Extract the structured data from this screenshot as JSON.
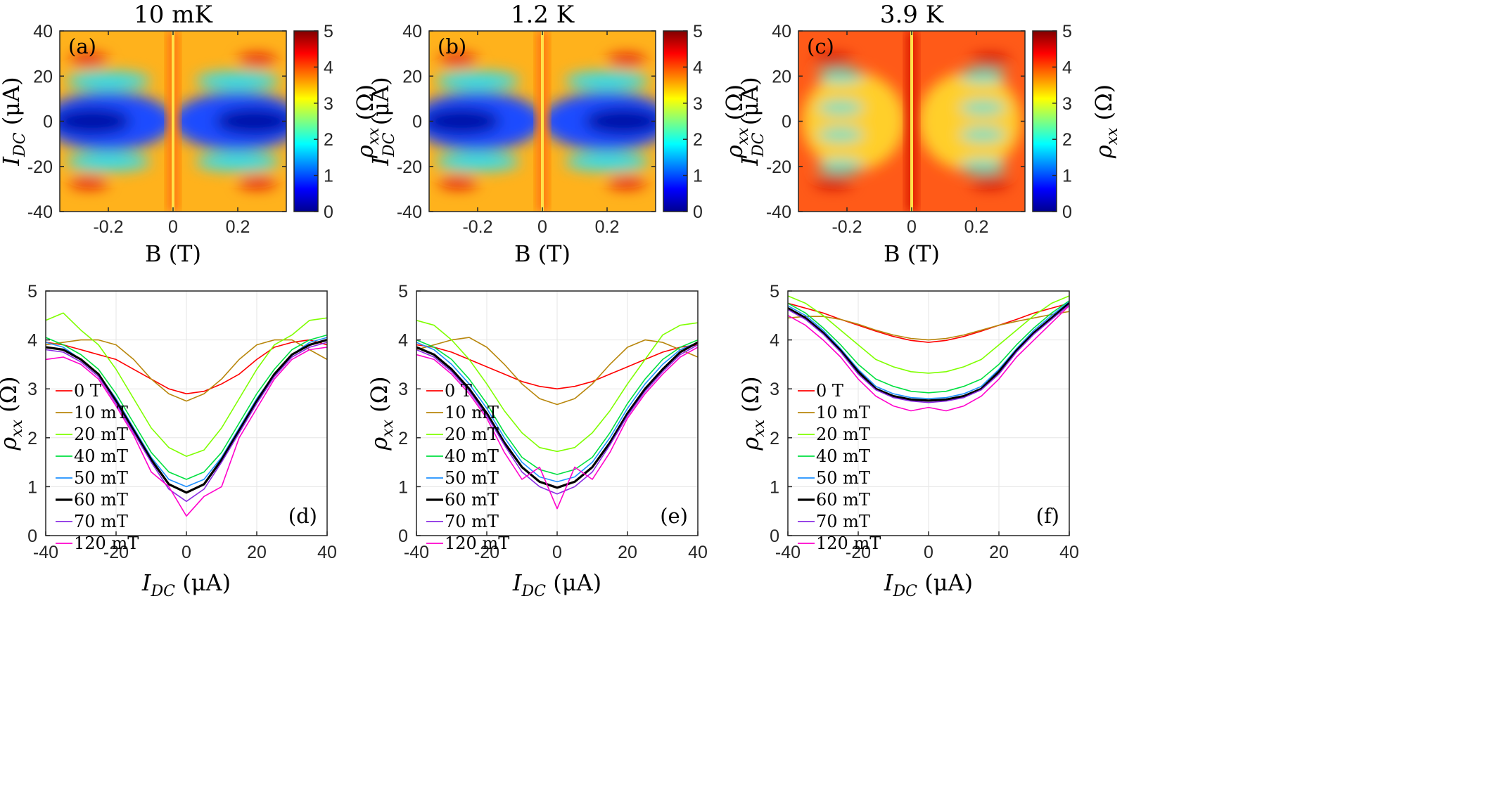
{
  "chart_data": [
    {
      "type": "heatmap",
      "panel": "(a)",
      "title": "10 mK",
      "xlabel": "B (T)",
      "ylabel": "I_DC (μA)",
      "colorbar_label": "ρ_xx (Ω)",
      "xlim": [
        -0.35,
        0.35
      ],
      "ylim": [
        -40,
        40
      ],
      "clim": [
        0,
        5
      ],
      "xticks": [
        "-0.2",
        "0",
        "0.2"
      ],
      "yticks": [
        "-40",
        "-20",
        "0",
        "20",
        "40"
      ],
      "cbar_ticks": [
        "0",
        "1",
        "2",
        "3",
        "4",
        "5"
      ],
      "temperature_K": 0.01
    },
    {
      "type": "heatmap",
      "panel": "(b)",
      "title": "1.2 K",
      "xlabel": "B (T)",
      "ylabel": "I_DC (μA)",
      "colorbar_label": "ρ_xx (Ω)",
      "xlim": [
        -0.35,
        0.35
      ],
      "ylim": [
        -40,
        40
      ],
      "clim": [
        0,
        5
      ],
      "xticks": [
        "-0.2",
        "0",
        "0.2"
      ],
      "yticks": [
        "-40",
        "-20",
        "0",
        "20",
        "40"
      ],
      "cbar_ticks": [
        "0",
        "1",
        "2",
        "3",
        "4",
        "5"
      ],
      "temperature_K": 1.2
    },
    {
      "type": "heatmap",
      "panel": "(c)",
      "title": "3.9 K",
      "xlabel": "B (T)",
      "ylabel": "I_DC (μA)",
      "colorbar_label": "ρ_xx (Ω)",
      "xlim": [
        -0.35,
        0.35
      ],
      "ylim": [
        -40,
        40
      ],
      "clim": [
        0,
        5
      ],
      "xticks": [
        "-0.2",
        "0",
        "0.2"
      ],
      "yticks": [
        "-40",
        "-20",
        "0",
        "20",
        "40"
      ],
      "cbar_ticks": [
        "0",
        "1",
        "2",
        "3",
        "4",
        "5"
      ],
      "temperature_K": 3.9
    },
    {
      "type": "line",
      "panel": "(d)",
      "xlabel": "I_DC (μA)",
      "ylabel": "ρ_xx (Ω)",
      "xlim": [
        -40,
        40
      ],
      "ylim": [
        0,
        5
      ],
      "xticks": [
        "-40",
        "-20",
        "0",
        "20",
        "40"
      ],
      "yticks": [
        "0",
        "1",
        "2",
        "3",
        "4",
        "5"
      ],
      "grid": true,
      "legend": "left",
      "x": [
        -40,
        -35,
        -30,
        -25,
        -20,
        -15,
        -10,
        -5,
        0,
        5,
        10,
        15,
        20,
        25,
        30,
        35,
        40
      ],
      "series": [
        {
          "name": "0 T",
          "color": "#ff0000",
          "values": [
            3.95,
            3.9,
            3.8,
            3.7,
            3.6,
            3.4,
            3.2,
            3.0,
            2.9,
            2.95,
            3.1,
            3.3,
            3.6,
            3.85,
            3.95,
            4.0,
            3.9
          ]
        },
        {
          "name": "10 mT",
          "color": "#b8860b",
          "values": [
            3.9,
            3.95,
            4.0,
            4.0,
            3.9,
            3.6,
            3.2,
            2.9,
            2.75,
            2.9,
            3.2,
            3.6,
            3.9,
            4.0,
            4.0,
            3.8,
            3.6
          ]
        },
        {
          "name": "20 mT",
          "color": "#7fff00",
          "values": [
            4.4,
            4.55,
            4.2,
            3.9,
            3.4,
            2.8,
            2.2,
            1.8,
            1.62,
            1.75,
            2.2,
            2.8,
            3.4,
            3.9,
            4.1,
            4.4,
            4.45
          ]
        },
        {
          "name": "40 mT",
          "color": "#00e040",
          "values": [
            4.05,
            3.9,
            3.7,
            3.4,
            2.9,
            2.3,
            1.7,
            1.3,
            1.15,
            1.3,
            1.7,
            2.3,
            2.9,
            3.4,
            3.8,
            4.0,
            4.1
          ]
        },
        {
          "name": "50 mT",
          "color": "#1e90ff",
          "values": [
            3.95,
            3.85,
            3.6,
            3.3,
            2.8,
            2.2,
            1.6,
            1.15,
            1.0,
            1.15,
            1.6,
            2.2,
            2.8,
            3.3,
            3.7,
            3.95,
            4.05
          ]
        },
        {
          "name": "60 mT",
          "color": "#000000",
          "values": [
            3.85,
            3.8,
            3.6,
            3.3,
            2.75,
            2.15,
            1.55,
            1.05,
            0.88,
            1.05,
            1.55,
            2.15,
            2.75,
            3.3,
            3.7,
            3.9,
            4.0
          ]
        },
        {
          "name": "70 mT",
          "color": "#8a2be2",
          "values": [
            3.8,
            3.75,
            3.55,
            3.25,
            2.7,
            2.1,
            1.5,
            0.95,
            0.7,
            0.95,
            1.5,
            2.1,
            2.7,
            3.25,
            3.65,
            3.85,
            3.95
          ]
        },
        {
          "name": "120 mT",
          "color": "#ff00cc",
          "values": [
            3.6,
            3.65,
            3.5,
            3.2,
            2.65,
            2.05,
            1.3,
            1.0,
            0.4,
            0.8,
            1.0,
            2.0,
            2.6,
            3.2,
            3.6,
            3.8,
            3.85
          ]
        }
      ]
    },
    {
      "type": "line",
      "panel": "(e)",
      "xlabel": "I_DC (μA)",
      "ylabel": "ρ_xx (Ω)",
      "xlim": [
        -40,
        40
      ],
      "ylim": [
        0,
        5
      ],
      "xticks": [
        "-40",
        "-20",
        "0",
        "20",
        "40"
      ],
      "yticks": [
        "0",
        "1",
        "2",
        "3",
        "4",
        "5"
      ],
      "grid": true,
      "legend": "left",
      "x": [
        -40,
        -35,
        -30,
        -25,
        -20,
        -15,
        -10,
        -5,
        0,
        5,
        10,
        15,
        20,
        25,
        30,
        35,
        40
      ],
      "series": [
        {
          "name": "0 T",
          "color": "#ff0000",
          "values": [
            3.9,
            3.85,
            3.75,
            3.6,
            3.45,
            3.3,
            3.15,
            3.05,
            3.0,
            3.05,
            3.15,
            3.3,
            3.45,
            3.6,
            3.75,
            3.85,
            3.9
          ]
        },
        {
          "name": "10 mT",
          "color": "#b8860b",
          "values": [
            3.8,
            3.9,
            4.0,
            4.05,
            3.85,
            3.5,
            3.1,
            2.8,
            2.68,
            2.8,
            3.1,
            3.5,
            3.85,
            4.0,
            3.95,
            3.8,
            3.65
          ]
        },
        {
          "name": "20 mT",
          "color": "#7fff00",
          "values": [
            4.4,
            4.3,
            4.0,
            3.6,
            3.1,
            2.55,
            2.1,
            1.8,
            1.72,
            1.8,
            2.1,
            2.55,
            3.1,
            3.6,
            4.1,
            4.3,
            4.35
          ]
        },
        {
          "name": "40 mT",
          "color": "#00e040",
          "values": [
            4.0,
            3.85,
            3.6,
            3.2,
            2.7,
            2.1,
            1.6,
            1.35,
            1.25,
            1.35,
            1.6,
            2.1,
            2.7,
            3.2,
            3.6,
            3.85,
            4.0
          ]
        },
        {
          "name": "50 mT",
          "color": "#1e90ff",
          "values": [
            3.95,
            3.8,
            3.5,
            3.1,
            2.6,
            2.0,
            1.5,
            1.2,
            1.1,
            1.2,
            1.5,
            2.0,
            2.6,
            3.1,
            3.5,
            3.8,
            3.95
          ]
        },
        {
          "name": "60 mT",
          "color": "#000000",
          "values": [
            3.85,
            3.7,
            3.4,
            3.0,
            2.5,
            1.9,
            1.4,
            1.1,
            0.98,
            1.1,
            1.4,
            1.9,
            2.5,
            3.0,
            3.4,
            3.75,
            3.95
          ]
        },
        {
          "name": "70 mT",
          "color": "#8a2be2",
          "values": [
            3.8,
            3.65,
            3.35,
            2.95,
            2.45,
            1.85,
            1.3,
            1.0,
            0.85,
            1.0,
            1.3,
            1.85,
            2.45,
            2.95,
            3.35,
            3.7,
            3.9
          ]
        },
        {
          "name": "120 mT",
          "color": "#ff00cc",
          "values": [
            3.7,
            3.6,
            3.3,
            2.9,
            2.4,
            1.7,
            1.15,
            1.4,
            0.55,
            1.4,
            1.15,
            1.7,
            2.4,
            2.9,
            3.3,
            3.65,
            3.85
          ]
        }
      ]
    },
    {
      "type": "line",
      "panel": "(f)",
      "xlabel": "I_DC (μA)",
      "ylabel": "ρ_xx (Ω)",
      "xlim": [
        -40,
        40
      ],
      "ylim": [
        0,
        5
      ],
      "xticks": [
        "-40",
        "-20",
        "0",
        "20",
        "40"
      ],
      "yticks": [
        "0",
        "1",
        "2",
        "3",
        "4",
        "5"
      ],
      "grid": true,
      "legend": "left",
      "x": [
        -40,
        -35,
        -30,
        -25,
        -20,
        -15,
        -10,
        -5,
        0,
        5,
        10,
        15,
        20,
        25,
        30,
        35,
        40
      ],
      "series": [
        {
          "name": "0 T",
          "color": "#ff0000",
          "values": [
            4.75,
            4.65,
            4.55,
            4.42,
            4.3,
            4.18,
            4.07,
            3.99,
            3.95,
            3.99,
            4.07,
            4.18,
            4.3,
            4.42,
            4.55,
            4.65,
            4.75
          ]
        },
        {
          "name": "10 mT",
          "color": "#b8860b",
          "values": [
            4.45,
            4.48,
            4.48,
            4.42,
            4.32,
            4.2,
            4.1,
            4.03,
            4.0,
            4.03,
            4.1,
            4.2,
            4.3,
            4.38,
            4.45,
            4.52,
            4.58
          ]
        },
        {
          "name": "20 mT",
          "color": "#7fff00",
          "values": [
            4.9,
            4.75,
            4.5,
            4.2,
            3.9,
            3.6,
            3.45,
            3.35,
            3.32,
            3.35,
            3.45,
            3.6,
            3.9,
            4.2,
            4.5,
            4.75,
            4.9
          ]
        },
        {
          "name": "40 mT",
          "color": "#00e040",
          "values": [
            4.75,
            4.55,
            4.25,
            3.9,
            3.5,
            3.2,
            3.05,
            2.95,
            2.92,
            2.95,
            3.05,
            3.2,
            3.5,
            3.9,
            4.25,
            4.55,
            4.8
          ]
        },
        {
          "name": "50 mT",
          "color": "#1e90ff",
          "values": [
            4.7,
            4.5,
            4.2,
            3.82,
            3.4,
            3.05,
            2.9,
            2.82,
            2.8,
            2.82,
            2.9,
            3.05,
            3.4,
            3.82,
            4.2,
            4.5,
            4.78
          ]
        },
        {
          "name": "60 mT",
          "color": "#000000",
          "values": [
            4.65,
            4.45,
            4.15,
            3.78,
            3.35,
            3.0,
            2.85,
            2.78,
            2.76,
            2.78,
            2.85,
            3.0,
            3.35,
            3.78,
            4.15,
            4.45,
            4.75
          ]
        },
        {
          "name": "70 mT",
          "color": "#8a2be2",
          "values": [
            4.62,
            4.42,
            4.12,
            3.75,
            3.3,
            2.98,
            2.82,
            2.75,
            2.72,
            2.75,
            2.82,
            2.98,
            3.3,
            3.75,
            4.12,
            4.42,
            4.72
          ]
        },
        {
          "name": "120 mT",
          "color": "#ff00cc",
          "values": [
            4.5,
            4.3,
            4.0,
            3.65,
            3.2,
            2.85,
            2.65,
            2.55,
            2.62,
            2.55,
            2.65,
            2.85,
            3.2,
            3.65,
            4.0,
            4.35,
            4.7
          ]
        }
      ]
    }
  ]
}
